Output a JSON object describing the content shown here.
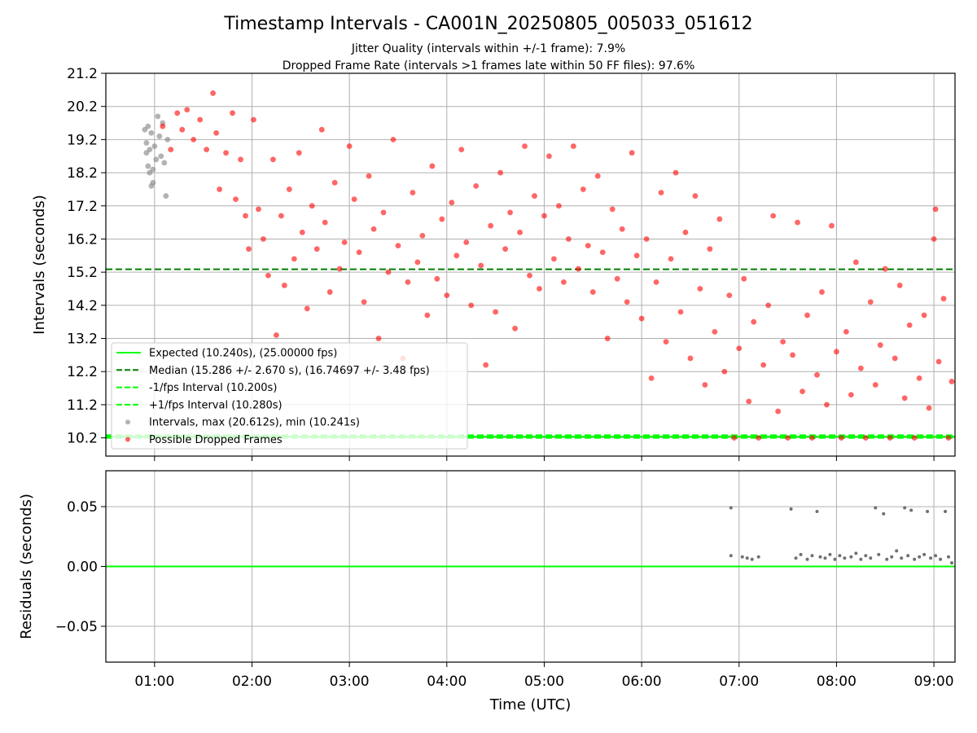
{
  "title": "Timestamp Intervals - CA001N_20250805_005033_051612",
  "subtitles": [
    "Jitter Quality (intervals within +/-1 frame): 7.9%",
    "Dropped Frame Rate (intervals >1 frames late within 50 FF files): 97.6%"
  ],
  "colors": {
    "expected": "#00ff00",
    "median": "#008000",
    "interval_bounds": "#00ff00",
    "intervals_scatter": "#808080",
    "dropped_scatter": "#ff0000",
    "residuals_scatter": "#707070"
  },
  "chart_data": [
    {
      "type": "scatter",
      "panel": "top",
      "xlabel": "",
      "ylabel": "Intervals (seconds)",
      "xlim": [
        "00:30",
        "09:13"
      ],
      "ylim": [
        9.65,
        21.2
      ],
      "y_ticks": [
        "10.2",
        "11.2",
        "12.2",
        "13.2",
        "14.2",
        "15.2",
        "16.2",
        "17.2",
        "18.2",
        "19.2",
        "20.2",
        "21.2"
      ],
      "x_ticks": [
        "01:00",
        "02:00",
        "03:00",
        "04:00",
        "05:00",
        "06:00",
        "07:00",
        "08:00",
        "09:00"
      ],
      "grid": true,
      "legend_position": "lower-left",
      "reference_lines": [
        {
          "name": "Expected (10.240s), (25.00000 fps)",
          "y": 10.24,
          "style": "solid"
        },
        {
          "name": "Median (15.286 +/- 2.670 s), (16.74697 +/- 3.48 fps)",
          "y": 15.286,
          "style": "dashed"
        },
        {
          "name": "-1/fps Interval (10.200s)",
          "y": 10.2,
          "style": "dashed"
        },
        {
          "name": "+1/fps Interval (10.280s)",
          "y": 10.28,
          "style": "dashed"
        }
      ],
      "series": [
        {
          "name": "Intervals, max (20.612s), min (10.241s)",
          "marker": "gray",
          "points": [
            [
              "00:54",
              19.5
            ],
            [
              "00:55",
              18.8
            ],
            [
              "00:55",
              19.1
            ],
            [
              "00:56",
              18.4
            ],
            [
              "00:56",
              19.6
            ],
            [
              "00:57",
              18.2
            ],
            [
              "00:57",
              18.9
            ],
            [
              "00:58",
              17.8
            ],
            [
              "00:58",
              19.4
            ],
            [
              "00:59",
              18.3
            ],
            [
              "00:59",
              17.9
            ],
            [
              "01:00",
              19.0
            ],
            [
              "01:01",
              18.6
            ],
            [
              "01:02",
              19.9
            ],
            [
              "01:03",
              19.3
            ],
            [
              "01:04",
              18.7
            ],
            [
              "01:05",
              19.7
            ],
            [
              "01:06",
              18.5
            ],
            [
              "01:07",
              17.5
            ],
            [
              "01:08",
              19.2
            ]
          ]
        },
        {
          "name": "Possible Dropped Frames",
          "marker": "red",
          "points": [
            [
              "01:05",
              19.6
            ],
            [
              "01:10",
              18.9
            ],
            [
              "01:14",
              20.0
            ],
            [
              "01:17",
              19.5
            ],
            [
              "01:20",
              20.1
            ],
            [
              "01:24",
              19.2
            ],
            [
              "01:28",
              19.8
            ],
            [
              "01:32",
              18.9
            ],
            [
              "01:36",
              20.6
            ],
            [
              "01:38",
              19.4
            ],
            [
              "01:40",
              17.7
            ],
            [
              "01:44",
              18.8
            ],
            [
              "01:48",
              20.0
            ],
            [
              "01:50",
              17.4
            ],
            [
              "01:53",
              18.6
            ],
            [
              "01:56",
              16.9
            ],
            [
              "01:58",
              15.9
            ],
            [
              "02:01",
              19.8
            ],
            [
              "02:04",
              17.1
            ],
            [
              "02:07",
              16.2
            ],
            [
              "02:10",
              15.1
            ],
            [
              "02:13",
              18.6
            ],
            [
              "02:15",
              13.3
            ],
            [
              "02:18",
              16.9
            ],
            [
              "02:20",
              14.8
            ],
            [
              "02:23",
              17.7
            ],
            [
              "02:26",
              15.6
            ],
            [
              "02:29",
              18.8
            ],
            [
              "02:31",
              16.4
            ],
            [
              "02:34",
              14.1
            ],
            [
              "02:37",
              17.2
            ],
            [
              "02:40",
              15.9
            ],
            [
              "02:43",
              19.5
            ],
            [
              "02:45",
              16.7
            ],
            [
              "02:48",
              14.6
            ],
            [
              "02:51",
              17.9
            ],
            [
              "02:54",
              15.3
            ],
            [
              "02:57",
              16.1
            ],
            [
              "03:00",
              19.0
            ],
            [
              "03:03",
              17.4
            ],
            [
              "03:06",
              15.8
            ],
            [
              "03:09",
              14.3
            ],
            [
              "03:12",
              18.1
            ],
            [
              "03:15",
              16.5
            ],
            [
              "03:18",
              13.2
            ],
            [
              "03:21",
              17.0
            ],
            [
              "03:24",
              15.2
            ],
            [
              "03:27",
              19.2
            ],
            [
              "03:30",
              16.0
            ],
            [
              "03:33",
              12.6
            ],
            [
              "03:36",
              14.9
            ],
            [
              "03:39",
              17.6
            ],
            [
              "03:42",
              15.5
            ],
            [
              "03:45",
              16.3
            ],
            [
              "03:48",
              13.9
            ],
            [
              "03:51",
              18.4
            ],
            [
              "03:54",
              15.0
            ],
            [
              "03:57",
              16.8
            ],
            [
              "04:00",
              14.5
            ],
            [
              "04:03",
              17.3
            ],
            [
              "04:06",
              15.7
            ],
            [
              "04:09",
              18.9
            ],
            [
              "04:12",
              16.1
            ],
            [
              "04:15",
              14.2
            ],
            [
              "04:18",
              17.8
            ],
            [
              "04:21",
              15.4
            ],
            [
              "04:24",
              12.4
            ],
            [
              "04:27",
              16.6
            ],
            [
              "04:30",
              14.0
            ],
            [
              "04:33",
              18.2
            ],
            [
              "04:36",
              15.9
            ],
            [
              "04:39",
              17.0
            ],
            [
              "04:42",
              13.5
            ],
            [
              "04:45",
              16.4
            ],
            [
              "04:48",
              19.0
            ],
            [
              "04:51",
              15.1
            ],
            [
              "04:54",
              17.5
            ],
            [
              "04:57",
              14.7
            ],
            [
              "05:00",
              16.9
            ],
            [
              "05:03",
              18.7
            ],
            [
              "05:06",
              15.6
            ],
            [
              "05:09",
              17.2
            ],
            [
              "05:12",
              14.9
            ],
            [
              "05:15",
              16.2
            ],
            [
              "05:18",
              19.0
            ],
            [
              "05:21",
              15.3
            ],
            [
              "05:24",
              17.7
            ],
            [
              "05:27",
              16.0
            ],
            [
              "05:30",
              14.6
            ],
            [
              "05:33",
              18.1
            ],
            [
              "05:36",
              15.8
            ],
            [
              "05:39",
              13.2
            ],
            [
              "05:42",
              17.1
            ],
            [
              "05:45",
              15.0
            ],
            [
              "05:48",
              16.5
            ],
            [
              "05:51",
              14.3
            ],
            [
              "05:54",
              18.8
            ],
            [
              "05:57",
              15.7
            ],
            [
              "06:00",
              13.8
            ],
            [
              "06:03",
              16.2
            ],
            [
              "06:06",
              12.0
            ],
            [
              "06:09",
              14.9
            ],
            [
              "06:12",
              17.6
            ],
            [
              "06:15",
              13.1
            ],
            [
              "06:18",
              15.6
            ],
            [
              "06:21",
              18.2
            ],
            [
              "06:24",
              14.0
            ],
            [
              "06:27",
              16.4
            ],
            [
              "06:30",
              12.6
            ],
            [
              "06:33",
              17.5
            ],
            [
              "06:36",
              14.7
            ],
            [
              "06:39",
              11.8
            ],
            [
              "06:42",
              15.9
            ],
            [
              "06:45",
              13.4
            ],
            [
              "06:48",
              16.8
            ],
            [
              "06:51",
              12.2
            ],
            [
              "06:54",
              14.5
            ],
            [
              "06:57",
              10.2
            ],
            [
              "07:00",
              12.9
            ],
            [
              "07:03",
              15.0
            ],
            [
              "07:06",
              11.3
            ],
            [
              "07:09",
              13.7
            ],
            [
              "07:12",
              10.2
            ],
            [
              "07:15",
              12.4
            ],
            [
              "07:18",
              14.2
            ],
            [
              "07:21",
              16.9
            ],
            [
              "07:24",
              11.0
            ],
            [
              "07:27",
              13.1
            ],
            [
              "07:30",
              10.2
            ],
            [
              "07:33",
              12.7
            ],
            [
              "07:36",
              16.7
            ],
            [
              "07:39",
              11.6
            ],
            [
              "07:42",
              13.9
            ],
            [
              "07:45",
              10.2
            ],
            [
              "07:48",
              12.1
            ],
            [
              "07:51",
              14.6
            ],
            [
              "07:54",
              11.2
            ],
            [
              "07:57",
              16.6
            ],
            [
              "08:00",
              12.8
            ],
            [
              "08:03",
              10.2
            ],
            [
              "08:06",
              13.4
            ],
            [
              "08:09",
              11.5
            ],
            [
              "08:12",
              15.5
            ],
            [
              "08:15",
              12.3
            ],
            [
              "08:18",
              10.2
            ],
            [
              "08:21",
              14.3
            ],
            [
              "08:24",
              11.8
            ],
            [
              "08:27",
              13.0
            ],
            [
              "08:30",
              15.3
            ],
            [
              "08:33",
              10.2
            ],
            [
              "08:36",
              12.6
            ],
            [
              "08:39",
              14.8
            ],
            [
              "08:42",
              11.4
            ],
            [
              "08:45",
              13.6
            ],
            [
              "08:48",
              10.2
            ],
            [
              "08:51",
              12.0
            ],
            [
              "08:54",
              13.9
            ],
            [
              "08:57",
              11.1
            ],
            [
              "09:00",
              16.2
            ],
            [
              "09:01",
              17.1
            ],
            [
              "09:03",
              12.5
            ],
            [
              "09:06",
              14.4
            ],
            [
              "09:09",
              10.2
            ],
            [
              "09:11",
              11.9
            ]
          ]
        }
      ]
    },
    {
      "type": "scatter",
      "panel": "bottom",
      "xlabel": "Time (UTC)",
      "ylabel": "Residuals (seconds)",
      "xlim": [
        "00:30",
        "09:13"
      ],
      "ylim": [
        -0.08,
        0.08
      ],
      "y_ticks": [
        "0.05",
        "0.00",
        "−0.05"
      ],
      "x_ticks": [
        "01:00",
        "02:00",
        "03:00",
        "04:00",
        "05:00",
        "06:00",
        "07:00",
        "08:00",
        "09:00"
      ],
      "grid": true,
      "reference_lines": [
        {
          "name": "zero",
          "y": 0.0,
          "style": "solid"
        }
      ],
      "series": [
        {
          "name": "",
          "points": [
            [
              "06:55",
              0.049
            ],
            [
              "06:55",
              0.009
            ],
            [
              "07:02",
              0.008
            ],
            [
              "07:05",
              0.007
            ],
            [
              "07:08",
              0.006
            ],
            [
              "07:12",
              0.008
            ],
            [
              "07:32",
              0.048
            ],
            [
              "07:35",
              0.007
            ],
            [
              "07:38",
              0.01
            ],
            [
              "07:42",
              0.006
            ],
            [
              "07:45",
              0.009
            ],
            [
              "07:48",
              0.046
            ],
            [
              "07:50",
              0.008
            ],
            [
              "07:53",
              0.007
            ],
            [
              "07:56",
              0.01
            ],
            [
              "07:59",
              0.006
            ],
            [
              "08:02",
              0.009
            ],
            [
              "08:05",
              0.007
            ],
            [
              "08:09",
              0.008
            ],
            [
              "08:12",
              0.011
            ],
            [
              "08:15",
              0.006
            ],
            [
              "08:18",
              0.009
            ],
            [
              "08:21",
              0.007
            ],
            [
              "08:24",
              0.049
            ],
            [
              "08:26",
              0.01
            ],
            [
              "08:29",
              0.044
            ],
            [
              "08:31",
              0.006
            ],
            [
              "08:34",
              0.008
            ],
            [
              "08:37",
              0.013
            ],
            [
              "08:40",
              0.007
            ],
            [
              "08:42",
              0.049
            ],
            [
              "08:44",
              0.009
            ],
            [
              "08:46",
              0.047
            ],
            [
              "08:48",
              0.006
            ],
            [
              "08:51",
              0.008
            ],
            [
              "08:54",
              0.01
            ],
            [
              "08:56",
              0.046
            ],
            [
              "08:58",
              0.007
            ],
            [
              "09:01",
              0.009
            ],
            [
              "09:04",
              0.006
            ],
            [
              "09:07",
              0.046
            ],
            [
              "09:09",
              0.008
            ],
            [
              "09:11",
              0.003
            ]
          ]
        }
      ]
    }
  ]
}
